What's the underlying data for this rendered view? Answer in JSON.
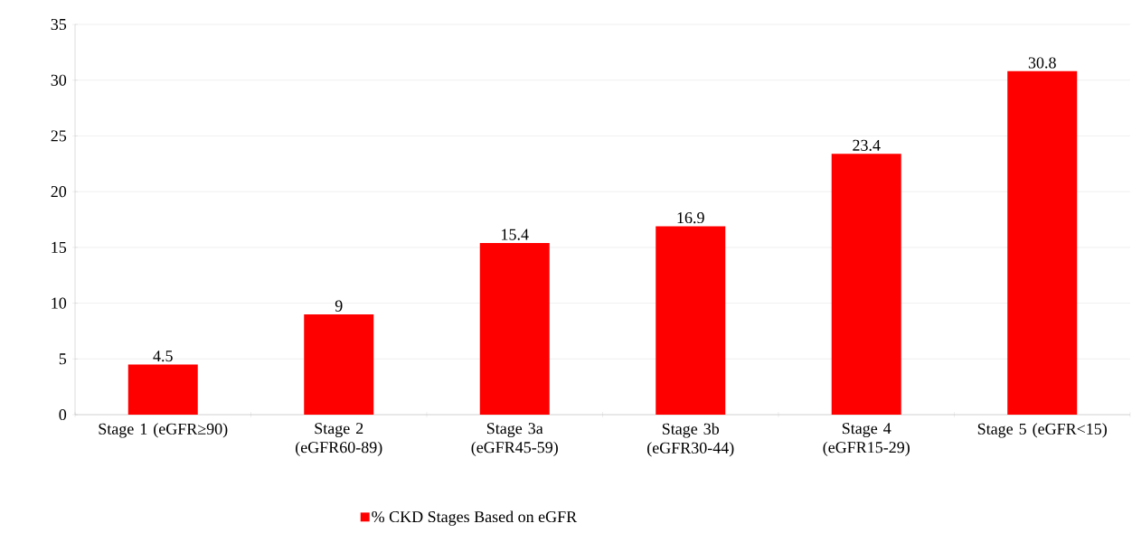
{
  "chart_data": {
    "type": "bar",
    "categories": [
      "Stage 1 (eGFR≥90)",
      "Stage 2 (eGFR60-89)",
      "Stage 3a (eGFR45-59)",
      "Stage 3b (eGFR30-44)",
      "Stage 4 (eGFR15-29)",
      "Stage 5 (eGFR<15)"
    ],
    "series": [
      {
        "name": "% CKD Stages Based on eGFR",
        "color": "#ff0000",
        "values": [
          4.5,
          9,
          15.4,
          16.9,
          23.4,
          30.8
        ]
      }
    ],
    "ylim": [
      0,
      35
    ],
    "yticks": [
      0,
      5,
      10,
      15,
      20,
      25,
      30,
      35
    ],
    "grid": "y",
    "legend": "bottom",
    "data_labels": true
  }
}
